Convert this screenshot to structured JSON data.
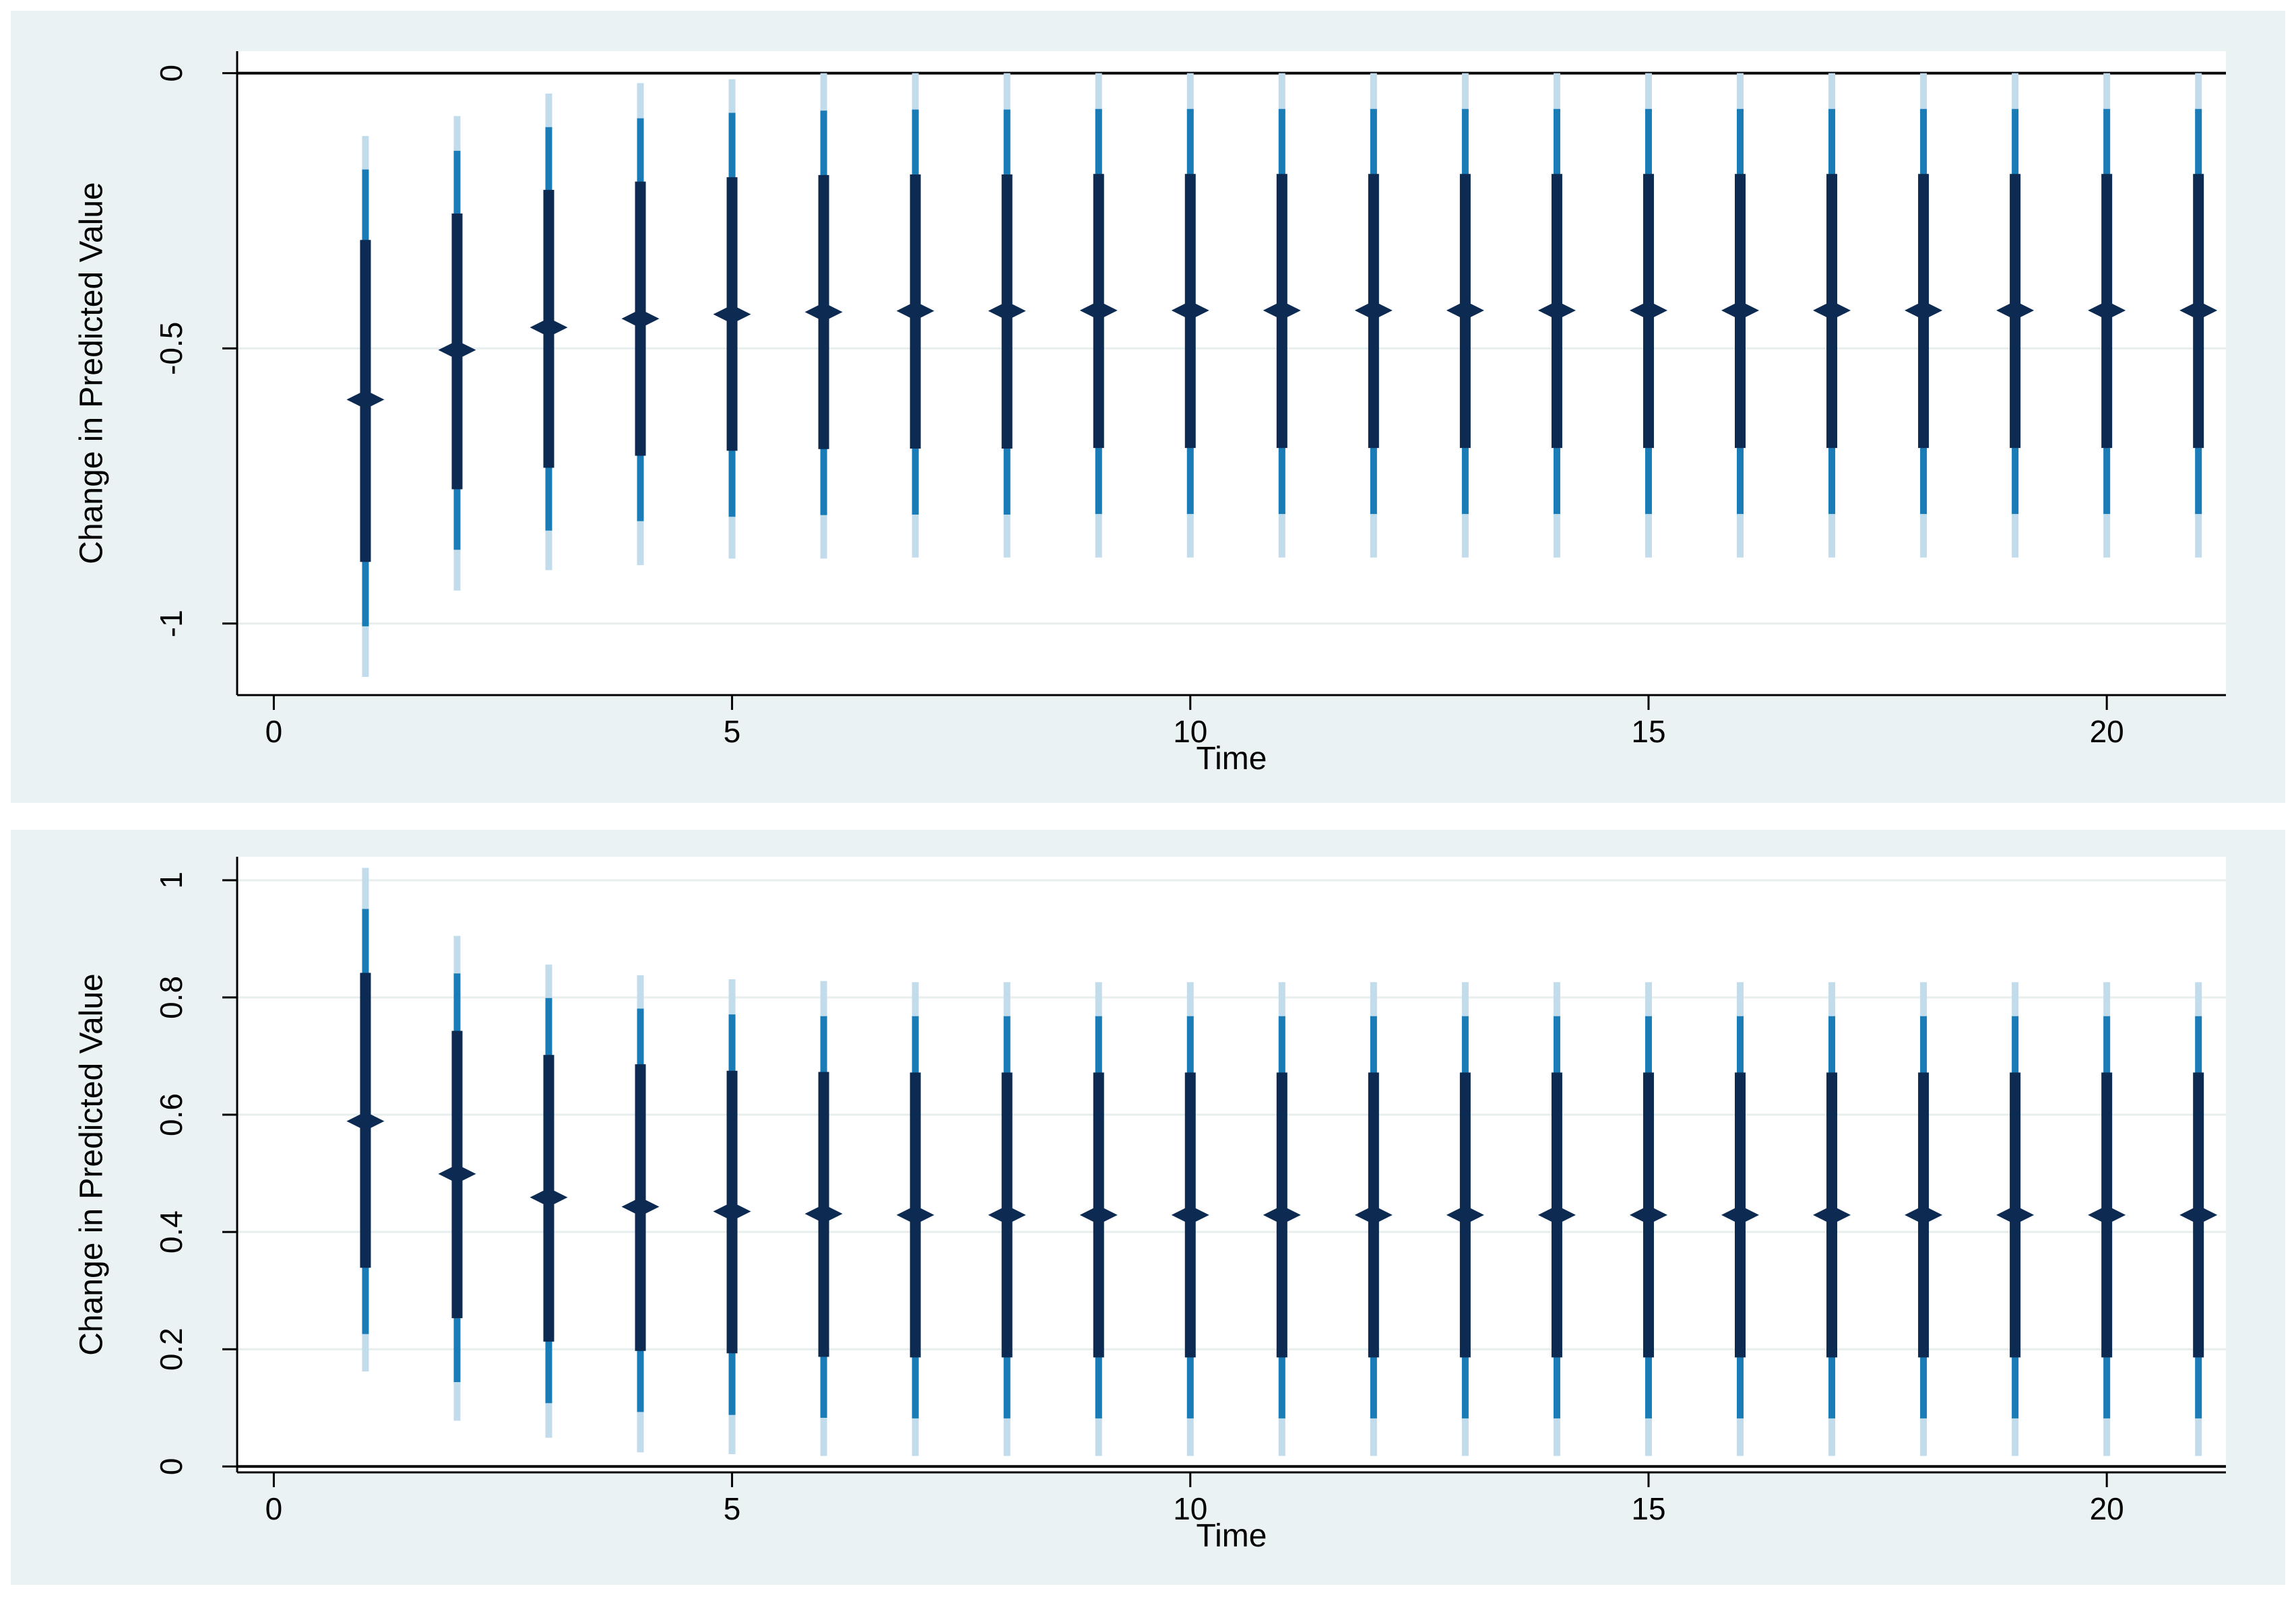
{
  "colors": {
    "panel_bg": "#eaf2f3",
    "plot_bg": "#ffffff",
    "grid": "#e6eeee",
    "axis": "#000000",
    "ci_outer": "#c2dcec",
    "ci_middle": "#1a7cb6",
    "ci_inner": "#0c2a52",
    "point": "#0c2a52"
  },
  "chart_data": [
    {
      "type": "scatter",
      "style": "point estimates with nested confidence interval bars",
      "xlabel": "Time",
      "ylabel": "Change in Predicted Value",
      "xlim": [
        -0.4,
        21.3
      ],
      "ylim": [
        -1.13,
        0.04
      ],
      "xticks": [
        0,
        5,
        10,
        15,
        20
      ],
      "xtick_labels": [
        "0",
        "5",
        "10",
        "15",
        "20"
      ],
      "yticks": [
        0,
        -0.5,
        -1
      ],
      "ytick_labels": [
        "0",
        "-0.5",
        "-1"
      ],
      "reference_line": 0,
      "grid": true,
      "x": [
        1,
        2,
        3,
        4,
        5,
        6,
        7,
        8,
        9,
        10,
        11,
        12,
        13,
        14,
        15,
        16,
        17,
        18,
        19,
        20,
        21
      ],
      "estimate": [
        -0.593,
        -0.503,
        -0.462,
        -0.446,
        -0.438,
        -0.434,
        -0.432,
        -0.432,
        -0.431,
        -0.431,
        -0.431,
        -0.431,
        -0.431,
        -0.431,
        -0.431,
        -0.431,
        -0.431,
        -0.431,
        -0.431,
        -0.431,
        -0.431
      ],
      "ci_inner": {
        "lower": [
          -0.888,
          -0.756,
          -0.717,
          -0.695,
          -0.686,
          -0.683,
          -0.682,
          -0.682,
          -0.681,
          -0.681,
          -0.681,
          -0.681,
          -0.681,
          -0.681,
          -0.681,
          -0.681,
          -0.681,
          -0.681,
          -0.681,
          -0.681,
          -0.681
        ],
        "upper": [
          -0.303,
          -0.255,
          -0.212,
          -0.197,
          -0.189,
          -0.185,
          -0.184,
          -0.184,
          -0.183,
          -0.183,
          -0.183,
          -0.183,
          -0.183,
          -0.183,
          -0.183,
          -0.183,
          -0.183,
          -0.183,
          -0.183,
          -0.183,
          -0.183
        ]
      },
      "ci_middle": {
        "lower": [
          -1.005,
          -0.866,
          -0.831,
          -0.814,
          -0.806,
          -0.803,
          -0.802,
          -0.802,
          -0.801,
          -0.801,
          -0.801,
          -0.801,
          -0.801,
          -0.801,
          -0.801,
          -0.801,
          -0.801,
          -0.801,
          -0.801,
          -0.801,
          -0.801
        ],
        "upper": [
          -0.175,
          -0.141,
          -0.098,
          -0.082,
          -0.072,
          -0.068,
          -0.066,
          -0.066,
          -0.065,
          -0.065,
          -0.065,
          -0.065,
          -0.065,
          -0.065,
          -0.065,
          -0.065,
          -0.065,
          -0.065,
          -0.065,
          -0.065,
          -0.065
        ]
      },
      "ci_outer": {
        "lower": [
          -1.097,
          -0.94,
          -0.903,
          -0.894,
          -0.882,
          -0.882,
          -0.88,
          -0.88,
          -0.88,
          -0.88,
          -0.88,
          -0.88,
          -0.88,
          -0.88,
          -0.88,
          -0.88,
          -0.88,
          -0.88,
          -0.88,
          -0.88,
          -0.88
        ],
        "upper": [
          -0.114,
          -0.078,
          -0.037,
          -0.018,
          -0.011,
          0,
          0,
          0,
          0,
          0,
          0,
          0,
          0,
          0,
          0,
          0,
          0,
          0,
          0,
          0,
          0
        ]
      }
    },
    {
      "type": "scatter",
      "style": "point estimates with nested confidence interval bars",
      "xlabel": "Time",
      "ylabel": "Change in Predicted Value",
      "xlim": [
        -0.4,
        21.3
      ],
      "ylim": [
        -0.01,
        1.04
      ],
      "xticks": [
        0,
        5,
        10,
        15,
        20
      ],
      "xtick_labels": [
        "0",
        "5",
        "10",
        "15",
        "20"
      ],
      "yticks": [
        0,
        0.2,
        0.4,
        0.6,
        0.8,
        1
      ],
      "ytick_labels": [
        "0",
        "0.2",
        "0.4",
        "0.6",
        "0.8",
        "1"
      ],
      "reference_line": 0,
      "grid": true,
      "x": [
        1,
        2,
        3,
        4,
        5,
        6,
        7,
        8,
        9,
        10,
        11,
        12,
        13,
        14,
        15,
        16,
        17,
        18,
        19,
        20,
        21
      ],
      "estimate": [
        0.589,
        0.499,
        0.459,
        0.443,
        0.435,
        0.431,
        0.429,
        0.429,
        0.429,
        0.429,
        0.429,
        0.429,
        0.429,
        0.429,
        0.429,
        0.429,
        0.429,
        0.429,
        0.429,
        0.429,
        0.429
      ],
      "ci_inner": {
        "lower": [
          0.339,
          0.253,
          0.213,
          0.197,
          0.193,
          0.187,
          0.186,
          0.186,
          0.186,
          0.186,
          0.186,
          0.186,
          0.186,
          0.186,
          0.186,
          0.186,
          0.186,
          0.186,
          0.186,
          0.186,
          0.186
        ],
        "upper": [
          0.842,
          0.743,
          0.702,
          0.686,
          0.675,
          0.673,
          0.672,
          0.672,
          0.672,
          0.672,
          0.672,
          0.672,
          0.672,
          0.672,
          0.672,
          0.672,
          0.672,
          0.672,
          0.672,
          0.672,
          0.672
        ]
      },
      "ci_middle": {
        "lower": [
          0.226,
          0.144,
          0.108,
          0.093,
          0.088,
          0.083,
          0.082,
          0.082,
          0.082,
          0.082,
          0.082,
          0.082,
          0.082,
          0.082,
          0.082,
          0.082,
          0.082,
          0.082,
          0.082,
          0.082,
          0.082
        ],
        "upper": [
          0.951,
          0.841,
          0.799,
          0.781,
          0.771,
          0.768,
          0.768,
          0.768,
          0.768,
          0.768,
          0.768,
          0.768,
          0.768,
          0.768,
          0.768,
          0.768,
          0.768,
          0.768,
          0.768,
          0.768,
          0.768
        ]
      },
      "ci_outer": {
        "lower": [
          0.162,
          0.078,
          0.049,
          0.024,
          0.021,
          0.018,
          0.018,
          0.018,
          0.018,
          0.018,
          0.018,
          0.018,
          0.018,
          0.018,
          0.018,
          0.018,
          0.018,
          0.018,
          0.018,
          0.018,
          0.018
        ],
        "upper": [
          1.021,
          0.905,
          0.856,
          0.838,
          0.831,
          0.828,
          0.826,
          0.826,
          0.826,
          0.826,
          0.826,
          0.826,
          0.826,
          0.826,
          0.826,
          0.826,
          0.826,
          0.826,
          0.826,
          0.826,
          0.826
        ]
      }
    }
  ]
}
